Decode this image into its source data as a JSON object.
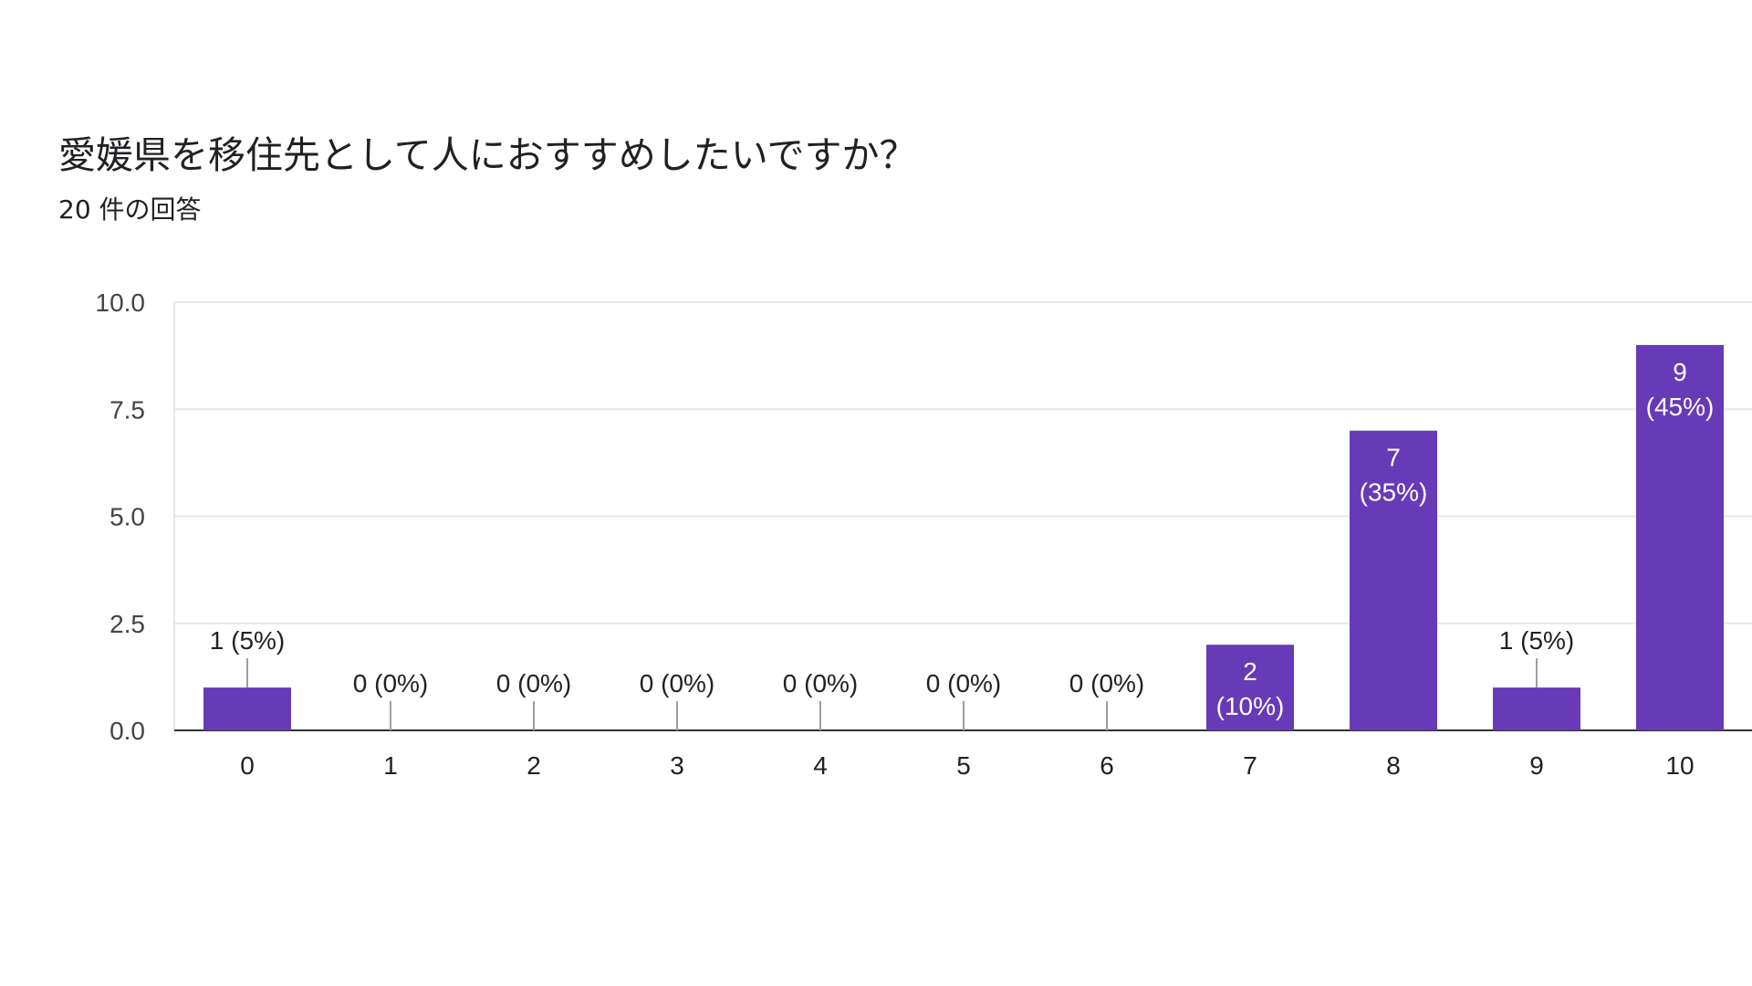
{
  "form_summary": {
    "question": "愛媛県を移住先として人におすすめしたいですか？",
    "response_count": "20 件の回答"
  },
  "chart_data": {
    "type": "bar",
    "categories": [
      "0",
      "1",
      "2",
      "3",
      "4",
      "5",
      "6",
      "7",
      "8",
      "9",
      "10"
    ],
    "values": [
      1,
      0,
      0,
      0,
      0,
      0,
      0,
      2,
      7,
      1,
      9
    ],
    "data_labels": [
      "1 (5%)",
      "0 (0%)",
      "0 (0%)",
      "0 (0%)",
      "0 (0%)",
      "0 (0%)",
      "0 (0%)",
      "2 (10%)",
      "7 (35%)",
      "1 (5%)",
      "9 (45%)"
    ],
    "title": "愛媛県を移住先として人におすすめしたいですか？",
    "subtitle": "20 件の回答",
    "ylim": [
      0,
      10
    ],
    "yticks": [
      "0.0",
      "2.5",
      "5.0",
      "7.5",
      "10.0"
    ],
    "ytick_values": [
      0,
      2.5,
      5,
      7.5,
      10
    ],
    "bar_color": "#673ab7",
    "grid": true
  }
}
